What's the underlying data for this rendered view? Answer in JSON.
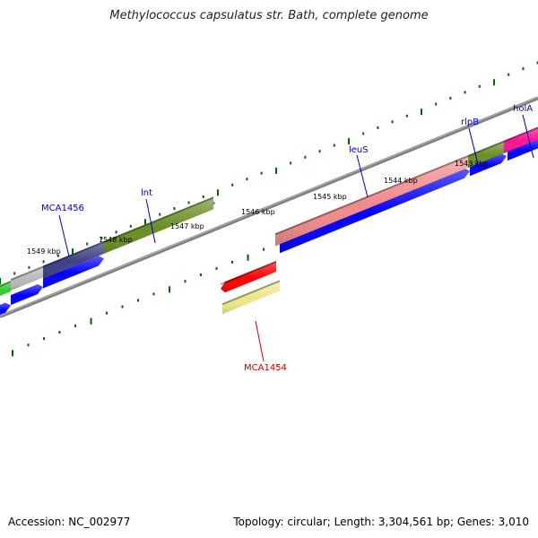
{
  "title": "Methylococcus capsulatus str. Bath, complete genome",
  "footer": {
    "accession": "Accession: NC_002977",
    "summary": "Topology: circular; Length: 3,304,561 bp; Genes: 3,010"
  },
  "scale": {
    "unit": "kbp",
    "tick_labels": [
      "1549 kbp",
      "1548 kbp",
      "1547 kbp",
      "1546 kbp",
      "1545 kbp",
      "1544 kbp",
      "1543 kbp"
    ]
  },
  "features": [
    {
      "name": "MCA1456",
      "strand": "forward",
      "color": "#3f3f85"
    },
    {
      "name": "lnt",
      "strand": "forward",
      "color": "#6b8e23"
    },
    {
      "name": "leuS",
      "strand": "forward",
      "color": "#f08a8a"
    },
    {
      "name": "rlpB",
      "strand": "forward",
      "color": "#6b8e23"
    },
    {
      "name": "holA",
      "strand": "forward",
      "color": "#ff1493"
    },
    {
      "name": "MCA1454",
      "strand": "reverse",
      "color": "#ff0000"
    }
  ],
  "colors": {
    "cds": "#0000ff",
    "backbone": "#808080",
    "tick": "#006400",
    "forward_label": "#0000cc",
    "reverse_label": "#cc0000",
    "light_green": "#32cd32",
    "gray_gene": "#b8b8b8",
    "khaki": "#eee68c"
  }
}
